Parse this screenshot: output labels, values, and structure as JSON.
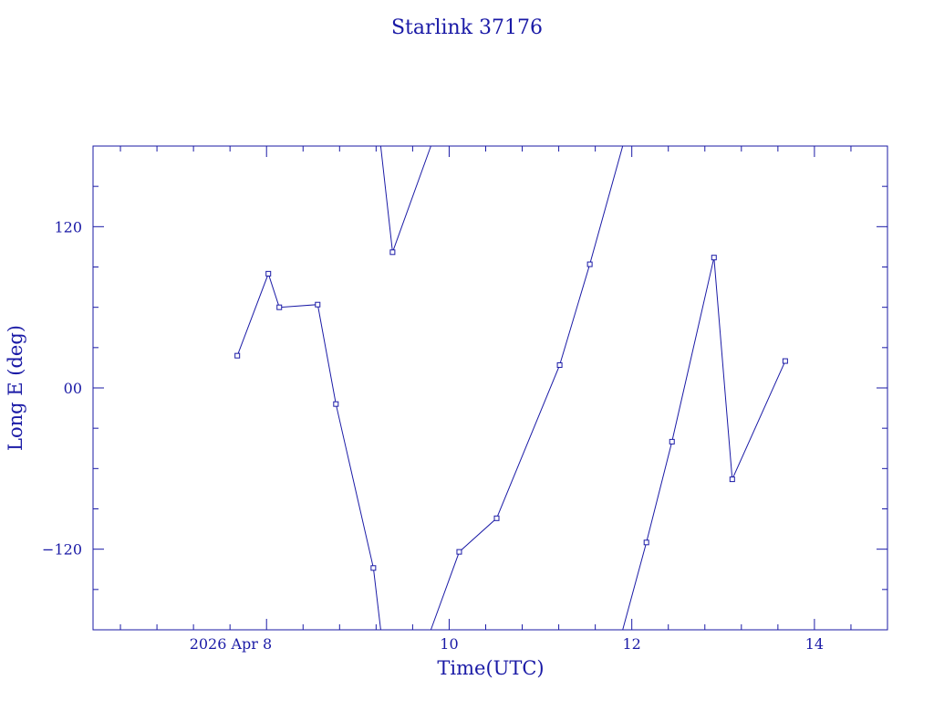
{
  "chart_data": {
    "type": "line",
    "title": "Starlink 37176",
    "xlabel": "Time(UTC)",
    "ylabel": "Long E (deg)",
    "xlim": [
      6.1,
      14.8
    ],
    "ylim": [
      -180,
      180
    ],
    "x_ticks": [
      {
        "value": 8,
        "label": "2026 Apr  8"
      },
      {
        "value": 10,
        "label": "10"
      },
      {
        "value": 12,
        "label": "12"
      },
      {
        "value": 14,
        "label": "14"
      }
    ],
    "y_ticks": [
      {
        "value": 120,
        "label": "120"
      },
      {
        "value": 0,
        "label": "00"
      },
      {
        "value": -120,
        "label": "−120"
      }
    ],
    "x_minor_step": 0.4,
    "y_minor_step": 30,
    "color": "#1a1aa6",
    "segments": [
      {
        "points": [
          [
            7.68,
            24.0
          ],
          [
            8.02,
            85.0
          ],
          [
            8.14,
            60.0
          ],
          [
            8.56,
            62.0
          ],
          [
            8.76,
            -12.0
          ],
          [
            9.17,
            -134.0
          ],
          [
            9.25,
            -180.0
          ]
        ]
      },
      {
        "points": [
          [
            9.25,
            180.0
          ],
          [
            9.38,
            101.0
          ],
          [
            9.8,
            180.0
          ]
        ]
      },
      {
        "points": [
          [
            9.8,
            -180.0
          ],
          [
            10.11,
            -122.0
          ],
          [
            10.52,
            -97.0
          ],
          [
            11.21,
            17.0
          ],
          [
            11.54,
            92.0
          ],
          [
            11.9,
            180.0
          ]
        ]
      },
      {
        "points": [
          [
            11.9,
            -180.0
          ],
          [
            12.16,
            -115.0
          ],
          [
            12.44,
            -40.0
          ],
          [
            12.9,
            97.0
          ],
          [
            13.1,
            -68.0
          ],
          [
            13.68,
            20.0
          ]
        ]
      }
    ],
    "markers": [
      [
        7.68,
        24.0
      ],
      [
        8.02,
        85.0
      ],
      [
        8.14,
        60.0
      ],
      [
        8.56,
        62.0
      ],
      [
        8.76,
        -12.0
      ],
      [
        9.17,
        -134.0
      ],
      [
        9.38,
        101.0
      ],
      [
        10.11,
        -122.0
      ],
      [
        10.52,
        -97.0
      ],
      [
        11.21,
        17.0
      ],
      [
        11.54,
        92.0
      ],
      [
        12.16,
        -115.0
      ],
      [
        12.44,
        -40.0
      ],
      [
        12.9,
        97.0
      ],
      [
        13.1,
        -68.0
      ],
      [
        13.68,
        20.0
      ]
    ]
  }
}
